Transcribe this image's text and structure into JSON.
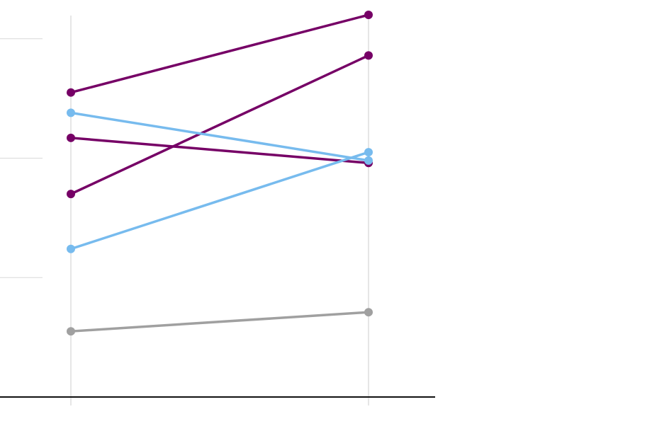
{
  "chart_data": {
    "type": "line",
    "chart_subtype": "slope",
    "title": "",
    "xlabel": "",
    "ylabel": "",
    "x": [
      0,
      1
    ],
    "ylim": [
      0,
      3.2
    ],
    "y_gridlines": [
      1,
      2,
      3
    ],
    "grid": true,
    "legend": "none",
    "series": [
      {
        "values": [
          2.55,
          3.2
        ],
        "color": "#760066"
      },
      {
        "values": [
          1.7,
          2.86
        ],
        "color": "#760066"
      },
      {
        "values": [
          2.17,
          1.96
        ],
        "color": "#760066"
      },
      {
        "values": [
          2.38,
          1.98
        ],
        "color": "#77bbee"
      },
      {
        "values": [
          1.24,
          2.05
        ],
        "color": "#77bbee"
      },
      {
        "values": [
          0.55,
          0.71
        ],
        "color": "#a0a0a0"
      }
    ],
    "colors": {
      "gridline": "#d9d9d9",
      "axis": "#111111",
      "x_rule": "#cccccc"
    }
  }
}
